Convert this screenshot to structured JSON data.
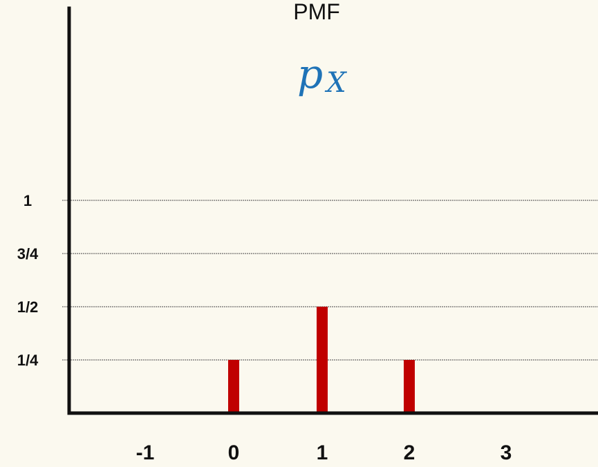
{
  "chart_data": {
    "type": "bar",
    "title": "PMF",
    "function_symbol": {
      "base": "p",
      "subscript": "X"
    },
    "x": [
      "-1",
      "0",
      "1",
      "2",
      "3"
    ],
    "values": [
      0,
      0.25,
      0.5,
      0.25,
      0
    ],
    "y_ticks": [
      {
        "value": 0.25,
        "label": "1/4"
      },
      {
        "value": 0.5,
        "label": "1/2"
      },
      {
        "value": 0.75,
        "label": "3/4"
      },
      {
        "value": 1,
        "label": "1"
      }
    ],
    "ylim": [
      0,
      1
    ],
    "grid": true,
    "bar_color": "#c00000",
    "symbol_color": "#1f73b7",
    "background_color": "#fbf9ef"
  }
}
